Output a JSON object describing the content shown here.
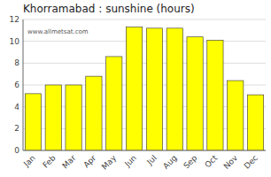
{
  "chart_data": {
    "type": "bar",
    "title": "Khorramabad : sunshine (hours)",
    "categories": [
      "Jan",
      "Feb",
      "Mar",
      "Apr",
      "May",
      "Jun",
      "Jul",
      "Aug",
      "Sep",
      "Oct",
      "Nov",
      "Dec"
    ],
    "values": [
      5.2,
      6.0,
      6.0,
      6.8,
      8.6,
      11.3,
      11.2,
      11.2,
      10.4,
      10.1,
      6.4,
      5.1
    ],
    "color": "#FFFF00",
    "ylim": [
      0,
      12
    ],
    "yticks": [
      0,
      2,
      4,
      6,
      8,
      10,
      12
    ],
    "grid": true,
    "annotations": [
      "www.allmetsat.com"
    ]
  }
}
